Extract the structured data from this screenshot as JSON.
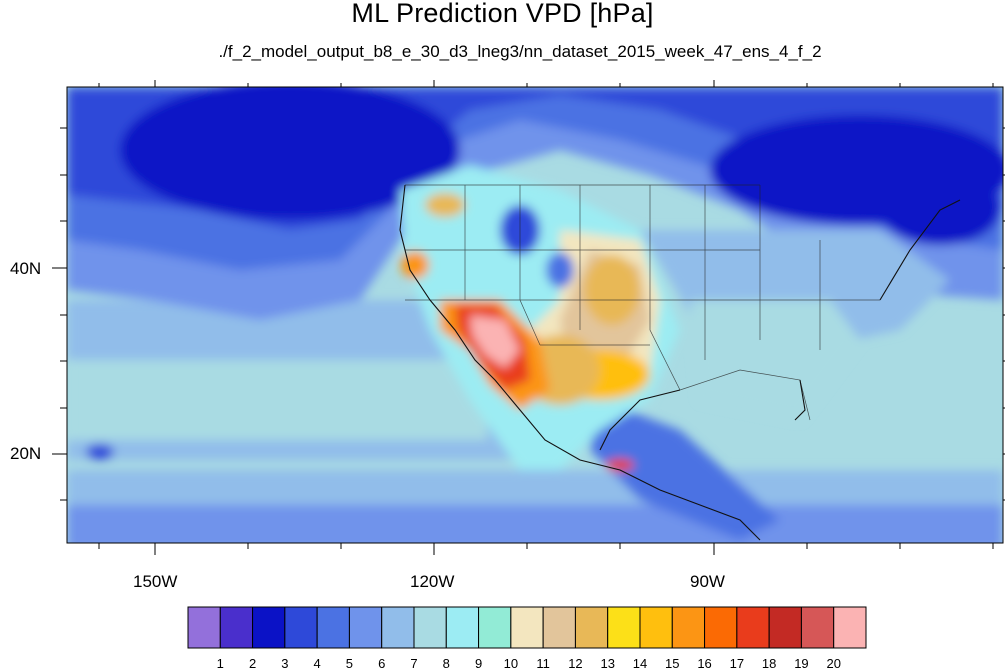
{
  "title": "ML Prediction VPD [hPa]",
  "subtitle": "./f_2_model_output_b8_e_30_d3_lneg3/nn_dataset_2015_week_47_ens_4_f_2",
  "axes": {
    "lat_labels": [
      "40N",
      "20N"
    ],
    "lon_labels": [
      "150W",
      "120W",
      "90W"
    ]
  },
  "colorbar": {
    "labels": [
      "1",
      "2",
      "3",
      "4",
      "5",
      "6",
      "7",
      "8",
      "9",
      "10",
      "11",
      "12",
      "13",
      "14",
      "15",
      "16",
      "17",
      "18",
      "19",
      "20"
    ],
    "colors": [
      "#9370db",
      "#4a2fcc",
      "#0b12c6",
      "#2e49d9",
      "#4b72e3",
      "#6f93eb",
      "#91bdea",
      "#a9dbe3",
      "#9cecf3",
      "#92ebd6",
      "#f3e6bf",
      "#e2c59b",
      "#e8b857",
      "#fce018",
      "#ffbf0e",
      "#fc9514",
      "#fb6a04",
      "#e93c1c",
      "#c32a24",
      "#d65757",
      "#fbb3b3"
    ]
  }
}
